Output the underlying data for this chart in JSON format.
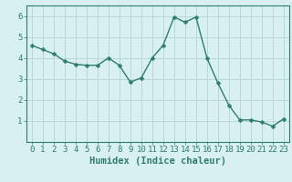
{
  "x": [
    0,
    1,
    2,
    3,
    4,
    5,
    6,
    7,
    8,
    9,
    10,
    11,
    12,
    13,
    14,
    15,
    16,
    17,
    18,
    19,
    20,
    21,
    22,
    23
  ],
  "y": [
    4.6,
    4.4,
    4.2,
    3.85,
    3.7,
    3.65,
    3.65,
    4.0,
    3.65,
    2.85,
    3.05,
    4.0,
    4.6,
    5.95,
    5.7,
    5.95,
    4.0,
    2.8,
    1.75,
    1.05,
    1.05,
    0.95,
    0.75,
    1.1
  ],
  "line_color": "#2e7d6e",
  "marker": "D",
  "marker_size": 2.5,
  "bg_color": "#d8f0f0",
  "grid_color": "#b8d8d8",
  "xlabel": "Humidex (Indice chaleur)",
  "ylim": [
    0,
    6.5
  ],
  "xlim": [
    -0.5,
    23.5
  ],
  "yticks": [
    1,
    2,
    3,
    4,
    5,
    6
  ],
  "xticks": [
    0,
    1,
    2,
    3,
    4,
    5,
    6,
    7,
    8,
    9,
    10,
    11,
    12,
    13,
    14,
    15,
    16,
    17,
    18,
    19,
    20,
    21,
    22,
    23
  ],
  "label_fontsize": 7.5,
  "tick_fontsize": 6.5
}
